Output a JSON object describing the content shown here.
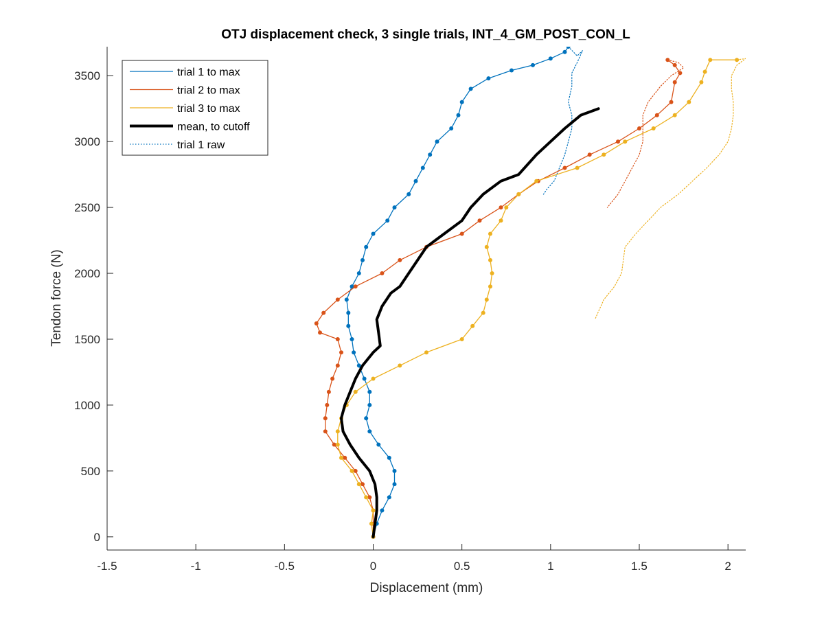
{
  "chart_data": {
    "type": "line",
    "title": "OTJ displacement check, 3 single trials, INT_4_GM_POST_CON_L",
    "xlabel": "Displacement (mm)",
    "ylabel": "Tendon force (N)",
    "xlim": [
      -1.5,
      2.1
    ],
    "ylim": [
      -100,
      3720
    ],
    "xticks": [
      -1.5,
      -1,
      -0.5,
      0,
      0.5,
      1,
      1.5,
      2
    ],
    "yticks": [
      0,
      500,
      1000,
      1500,
      2000,
      2500,
      3000,
      3500
    ],
    "grid": false,
    "legend_position": "top-left",
    "colors": {
      "trial1": "#0072BD",
      "trial2": "#D95319",
      "trial3": "#EDB120",
      "mean": "#000000"
    },
    "series": [
      {
        "name": "trial 1 to max",
        "style": "solid-dots",
        "color": "#0072BD",
        "points": [
          [
            0.0,
            0
          ],
          [
            0.02,
            100
          ],
          [
            0.05,
            200
          ],
          [
            0.09,
            300
          ],
          [
            0.12,
            400
          ],
          [
            0.12,
            500
          ],
          [
            0.09,
            600
          ],
          [
            0.03,
            700
          ],
          [
            -0.02,
            800
          ],
          [
            -0.04,
            900
          ],
          [
            -0.02,
            1000
          ],
          [
            -0.02,
            1100
          ],
          [
            -0.05,
            1200
          ],
          [
            -0.08,
            1300
          ],
          [
            -0.11,
            1400
          ],
          [
            -0.12,
            1500
          ],
          [
            -0.14,
            1600
          ],
          [
            -0.14,
            1700
          ],
          [
            -0.15,
            1800
          ],
          [
            -0.12,
            1900
          ],
          [
            -0.08,
            2000
          ],
          [
            -0.06,
            2100
          ],
          [
            -0.04,
            2200
          ],
          [
            0.0,
            2300
          ],
          [
            0.08,
            2400
          ],
          [
            0.12,
            2500
          ],
          [
            0.2,
            2600
          ],
          [
            0.24,
            2700
          ],
          [
            0.28,
            2800
          ],
          [
            0.32,
            2900
          ],
          [
            0.36,
            3000
          ],
          [
            0.44,
            3100
          ],
          [
            0.48,
            3200
          ],
          [
            0.5,
            3300
          ],
          [
            0.55,
            3400
          ],
          [
            0.65,
            3480
          ],
          [
            0.78,
            3540
          ],
          [
            0.9,
            3580
          ],
          [
            1.0,
            3630
          ],
          [
            1.08,
            3680
          ],
          [
            1.1,
            3720
          ]
        ]
      },
      {
        "name": "trial 2 to max",
        "style": "solid-dots",
        "color": "#D95319",
        "points": [
          [
            0.0,
            0
          ],
          [
            0.0,
            100
          ],
          [
            0.0,
            200
          ],
          [
            -0.02,
            300
          ],
          [
            -0.06,
            400
          ],
          [
            -0.1,
            500
          ],
          [
            -0.16,
            600
          ],
          [
            -0.22,
            700
          ],
          [
            -0.27,
            800
          ],
          [
            -0.27,
            900
          ],
          [
            -0.26,
            1000
          ],
          [
            -0.25,
            1100
          ],
          [
            -0.23,
            1200
          ],
          [
            -0.2,
            1300
          ],
          [
            -0.18,
            1400
          ],
          [
            -0.2,
            1500
          ],
          [
            -0.3,
            1550
          ],
          [
            -0.32,
            1620
          ],
          [
            -0.28,
            1700
          ],
          [
            -0.2,
            1800
          ],
          [
            -0.1,
            1900
          ],
          [
            0.05,
            2000
          ],
          [
            0.15,
            2100
          ],
          [
            0.3,
            2200
          ],
          [
            0.5,
            2300
          ],
          [
            0.6,
            2400
          ],
          [
            0.72,
            2500
          ],
          [
            0.82,
            2600
          ],
          [
            0.93,
            2700
          ],
          [
            1.08,
            2800
          ],
          [
            1.22,
            2900
          ],
          [
            1.38,
            3000
          ],
          [
            1.5,
            3100
          ],
          [
            1.6,
            3200
          ],
          [
            1.68,
            3300
          ],
          [
            1.7,
            3450
          ],
          [
            1.73,
            3520
          ],
          [
            1.7,
            3580
          ],
          [
            1.66,
            3620
          ]
        ]
      },
      {
        "name": "trial 3 to max",
        "style": "solid-dots",
        "color": "#EDB120",
        "points": [
          [
            0.0,
            0
          ],
          [
            -0.01,
            100
          ],
          [
            0.0,
            200
          ],
          [
            -0.04,
            300
          ],
          [
            -0.08,
            400
          ],
          [
            -0.12,
            500
          ],
          [
            -0.18,
            600
          ],
          [
            -0.2,
            700
          ],
          [
            -0.2,
            800
          ],
          [
            -0.18,
            900
          ],
          [
            -0.15,
            1000
          ],
          [
            -0.1,
            1100
          ],
          [
            0.0,
            1200
          ],
          [
            0.15,
            1300
          ],
          [
            0.3,
            1400
          ],
          [
            0.5,
            1500
          ],
          [
            0.56,
            1600
          ],
          [
            0.62,
            1700
          ],
          [
            0.64,
            1800
          ],
          [
            0.66,
            1900
          ],
          [
            0.67,
            2000
          ],
          [
            0.66,
            2100
          ],
          [
            0.64,
            2200
          ],
          [
            0.66,
            2300
          ],
          [
            0.72,
            2400
          ],
          [
            0.75,
            2500
          ],
          [
            0.82,
            2600
          ],
          [
            0.92,
            2700
          ],
          [
            1.15,
            2800
          ],
          [
            1.3,
            2900
          ],
          [
            1.42,
            3000
          ],
          [
            1.58,
            3100
          ],
          [
            1.7,
            3200
          ],
          [
            1.78,
            3300
          ],
          [
            1.85,
            3450
          ],
          [
            1.87,
            3530
          ],
          [
            1.9,
            3620
          ],
          [
            2.05,
            3620
          ]
        ]
      },
      {
        "name": "mean, to cutoff",
        "style": "thick",
        "color": "#000000",
        "points": [
          [
            0.0,
            0
          ],
          [
            0.01,
            100
          ],
          [
            0.02,
            200
          ],
          [
            0.02,
            300
          ],
          [
            0.01,
            400
          ],
          [
            -0.02,
            500
          ],
          [
            -0.08,
            600
          ],
          [
            -0.13,
            700
          ],
          [
            -0.17,
            800
          ],
          [
            -0.18,
            900
          ],
          [
            -0.16,
            1000
          ],
          [
            -0.13,
            1100
          ],
          [
            -0.1,
            1200
          ],
          [
            -0.06,
            1300
          ],
          [
            0.0,
            1400
          ],
          [
            0.04,
            1450
          ],
          [
            0.03,
            1550
          ],
          [
            0.02,
            1650
          ],
          [
            0.05,
            1750
          ],
          [
            0.1,
            1850
          ],
          [
            0.15,
            1900
          ],
          [
            0.2,
            2000
          ],
          [
            0.25,
            2100
          ],
          [
            0.3,
            2200
          ],
          [
            0.4,
            2300
          ],
          [
            0.5,
            2400
          ],
          [
            0.55,
            2500
          ],
          [
            0.62,
            2600
          ],
          [
            0.72,
            2700
          ],
          [
            0.82,
            2750
          ],
          [
            0.92,
            2900
          ],
          [
            1.0,
            3000
          ],
          [
            1.08,
            3100
          ],
          [
            1.17,
            3200
          ],
          [
            1.27,
            3250
          ]
        ]
      },
      {
        "name": "trial 1 raw",
        "style": "dotted",
        "color": "#0072BD",
        "points": [
          [
            1.1,
            3720
          ],
          [
            1.15,
            3650
          ],
          [
            1.18,
            3690
          ],
          [
            1.15,
            3600
          ],
          [
            1.12,
            3520
          ],
          [
            1.12,
            3420
          ],
          [
            1.1,
            3300
          ],
          [
            1.12,
            3200
          ],
          [
            1.12,
            3100
          ],
          [
            1.1,
            3000
          ],
          [
            1.08,
            2900
          ],
          [
            1.05,
            2800
          ],
          [
            1.02,
            2700
          ],
          [
            0.98,
            2640
          ],
          [
            0.96,
            2600
          ]
        ]
      },
      {
        "name": "",
        "style": "dotted",
        "color": "#D95319",
        "points": [
          [
            1.66,
            3620
          ],
          [
            1.72,
            3600
          ],
          [
            1.75,
            3560
          ],
          [
            1.68,
            3500
          ],
          [
            1.62,
            3420
          ],
          [
            1.55,
            3300
          ],
          [
            1.52,
            3200
          ],
          [
            1.52,
            3100
          ],
          [
            1.52,
            3000
          ],
          [
            1.5,
            2900
          ],
          [
            1.46,
            2800
          ],
          [
            1.42,
            2700
          ],
          [
            1.38,
            2600
          ],
          [
            1.32,
            2500
          ]
        ]
      },
      {
        "name": "",
        "style": "dotted",
        "color": "#EDB120",
        "points": [
          [
            2.05,
            3620
          ],
          [
            2.1,
            3630
          ],
          [
            2.05,
            3580
          ],
          [
            2.02,
            3500
          ],
          [
            2.02,
            3400
          ],
          [
            2.03,
            3300
          ],
          [
            2.03,
            3200
          ],
          [
            2.02,
            3100
          ],
          [
            2.0,
            3000
          ],
          [
            1.95,
            2900
          ],
          [
            1.88,
            2800
          ],
          [
            1.8,
            2700
          ],
          [
            1.72,
            2600
          ],
          [
            1.62,
            2500
          ],
          [
            1.55,
            2400
          ],
          [
            1.48,
            2300
          ],
          [
            1.42,
            2200
          ],
          [
            1.4,
            2000
          ],
          [
            1.36,
            1900
          ],
          [
            1.3,
            1800
          ],
          [
            1.25,
            1650
          ]
        ]
      }
    ]
  }
}
